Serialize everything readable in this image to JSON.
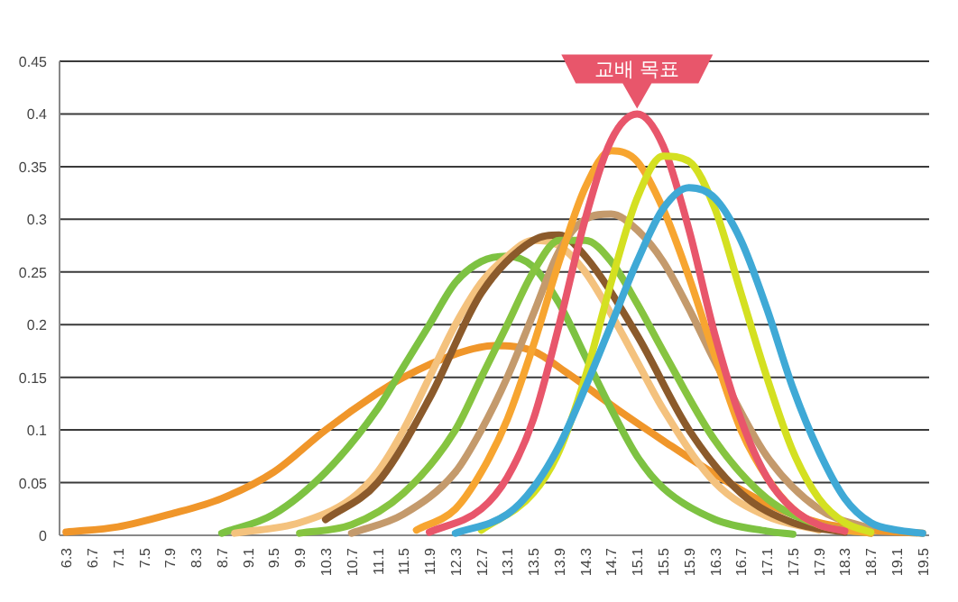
{
  "chart_data": {
    "type": "line",
    "xlim": [
      6.2,
      19.6
    ],
    "ylim": [
      0,
      0.45
    ],
    "xticks": [
      6.3,
      6.7,
      7.1,
      7.5,
      7.9,
      8.3,
      8.7,
      9.1,
      9.5,
      9.9,
      10.3,
      10.7,
      11.1,
      11.5,
      11.9,
      12.3,
      12.7,
      13.1,
      13.5,
      13.9,
      14.3,
      14.7,
      15.1,
      15.5,
      15.9,
      16.3,
      16.7,
      17.1,
      17.5,
      17.9,
      18.3,
      18.7,
      19.1,
      19.5
    ],
    "yticks": [
      0,
      0.05,
      0.1,
      0.15,
      0.2,
      0.25,
      0.3,
      0.35,
      0.4,
      0.45
    ],
    "grid": "y",
    "series": [
      {
        "color": "#f0962a",
        "x": [
          6.3,
          7.1,
          7.9,
          8.7,
          9.5,
          10.3,
          11.1,
          11.5,
          12.3,
          12.9,
          13.5,
          14.0,
          14.9,
          15.5,
          16.3,
          17.1,
          17.9,
          18.7,
          19.5
        ],
        "values": [
          0.003,
          0.008,
          0.02,
          0.035,
          0.06,
          0.1,
          0.135,
          0.15,
          0.172,
          0.18,
          0.175,
          0.155,
          0.115,
          0.09,
          0.058,
          0.03,
          0.012,
          0.005,
          0.002
        ]
      },
      {
        "color": "#7dc242",
        "x": [
          8.7,
          9.5,
          10.3,
          11.1,
          11.5,
          11.9,
          12.3,
          12.7,
          13.1,
          13.5,
          13.9,
          14.3,
          14.7,
          15.1,
          15.5,
          16.3,
          17.1,
          17.5
        ],
        "values": [
          0.002,
          0.02,
          0.06,
          0.12,
          0.16,
          0.2,
          0.24,
          0.26,
          0.265,
          0.255,
          0.22,
          0.17,
          0.12,
          0.075,
          0.045,
          0.015,
          0.004,
          0.001
        ]
      },
      {
        "color": "#f4c27e",
        "x": [
          8.9,
          9.9,
          10.7,
          11.1,
          11.5,
          11.9,
          12.3,
          12.7,
          13.1,
          13.5,
          13.9,
          14.3,
          14.7,
          15.1,
          15.5,
          16.3,
          17.1,
          17.9
        ],
        "values": [
          0.002,
          0.012,
          0.035,
          0.06,
          0.1,
          0.15,
          0.2,
          0.24,
          0.265,
          0.28,
          0.275,
          0.25,
          0.21,
          0.165,
          0.12,
          0.05,
          0.018,
          0.005
        ]
      },
      {
        "color": "#8b5a2b",
        "x": [
          10.3,
          11.1,
          11.9,
          12.7,
          13.5,
          13.9,
          14.3,
          15.1,
          15.9,
          16.7,
          17.5,
          18.3
        ],
        "values": [
          0.015,
          0.05,
          0.13,
          0.23,
          0.28,
          0.285,
          0.265,
          0.19,
          0.1,
          0.04,
          0.012,
          0.003
        ]
      },
      {
        "color": "#86c440",
        "x": [
          9.9,
          10.7,
          11.5,
          12.3,
          12.7,
          13.1,
          13.5,
          13.9,
          14.3,
          14.7,
          15.1,
          15.5,
          16.3,
          17.1,
          17.9,
          18.7
        ],
        "values": [
          0.002,
          0.01,
          0.04,
          0.1,
          0.15,
          0.2,
          0.25,
          0.28,
          0.28,
          0.26,
          0.22,
          0.175,
          0.09,
          0.035,
          0.01,
          0.002
        ]
      },
      {
        "color": "#c49a6c",
        "x": [
          10.7,
          11.5,
          12.3,
          12.7,
          13.1,
          13.5,
          13.9,
          14.3,
          14.7,
          15.1,
          15.5,
          15.9,
          16.3,
          17.1,
          17.9,
          18.7
        ],
        "values": [
          0.002,
          0.02,
          0.06,
          0.1,
          0.15,
          0.21,
          0.27,
          0.3,
          0.305,
          0.29,
          0.26,
          0.215,
          0.165,
          0.075,
          0.025,
          0.006
        ]
      },
      {
        "color": "#f7a530",
        "x": [
          11.7,
          12.3,
          12.7,
          13.1,
          13.5,
          13.9,
          14.3,
          14.7,
          15.1,
          15.5,
          15.9,
          16.3,
          16.7,
          17.1,
          17.5,
          17.9,
          18.7
        ],
        "values": [
          0.005,
          0.025,
          0.06,
          0.11,
          0.18,
          0.26,
          0.33,
          0.365,
          0.355,
          0.31,
          0.245,
          0.17,
          0.1,
          0.055,
          0.025,
          0.01,
          0.002
        ]
      },
      {
        "color": "#e8566b",
        "x": [
          11.9,
          12.7,
          13.1,
          13.5,
          13.9,
          14.3,
          14.7,
          15.1,
          15.5,
          15.9,
          16.3,
          16.7,
          17.1,
          17.5,
          17.9,
          18.3
        ],
        "values": [
          0.003,
          0.025,
          0.055,
          0.11,
          0.2,
          0.3,
          0.375,
          0.4,
          0.37,
          0.29,
          0.19,
          0.11,
          0.055,
          0.025,
          0.01,
          0.004
        ]
      },
      {
        "color": "#d4e021",
        "x": [
          12.7,
          13.5,
          13.9,
          14.3,
          14.7,
          15.1,
          15.5,
          15.9,
          16.3,
          16.7,
          17.1,
          17.5,
          17.9,
          18.3,
          18.7
        ],
        "values": [
          0.005,
          0.04,
          0.08,
          0.15,
          0.24,
          0.32,
          0.36,
          0.355,
          0.31,
          0.23,
          0.15,
          0.08,
          0.035,
          0.012,
          0.003
        ]
      },
      {
        "color": "#3fa9d6",
        "x": [
          12.3,
          13.1,
          13.5,
          13.9,
          14.3,
          14.7,
          15.1,
          15.5,
          15.9,
          16.3,
          16.7,
          17.1,
          17.5,
          17.9,
          18.3,
          18.7,
          19.1,
          19.5
        ],
        "values": [
          0.002,
          0.02,
          0.045,
          0.085,
          0.14,
          0.2,
          0.26,
          0.31,
          0.33,
          0.32,
          0.28,
          0.215,
          0.14,
          0.08,
          0.035,
          0.012,
          0.005,
          0.002
        ]
      }
    ],
    "annotations": [
      {
        "text": "교배 목표",
        "x": 15.1,
        "y": 0.4
      }
    ]
  }
}
